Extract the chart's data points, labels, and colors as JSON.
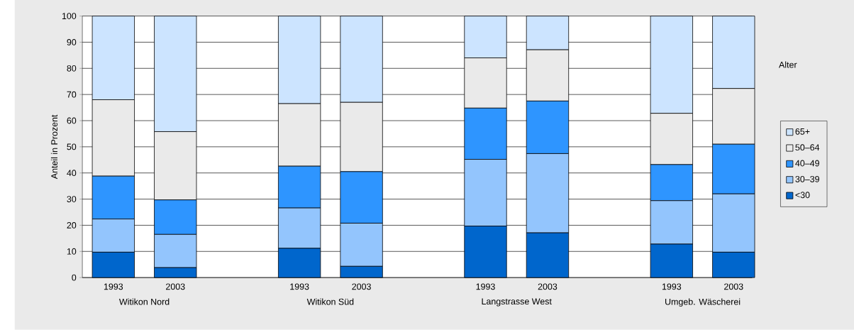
{
  "chart_data": {
    "type": "bar",
    "stacked": true,
    "ylabel": "Anteil in Prozent",
    "legend_title": "Alter",
    "legend": "right",
    "grid": "y",
    "categories": [
      "1993",
      "2003",
      null,
      "1993",
      "2003",
      null,
      "1993",
      "2003",
      null,
      "1993",
      "2003"
    ],
    "annotations": [
      "Witikon Nord",
      "Witikon Süd",
      "Langstrasse West",
      "Umgeb. Wäscherei"
    ],
    "ylim": [
      0,
      100
    ],
    "yticks": [
      0,
      10,
      20,
      30,
      40,
      50,
      60,
      70,
      80,
      90,
      100
    ],
    "series": [
      {
        "name": "<30",
        "color": "#0066cc",
        "values": [
          9.7,
          3.8,
          null,
          11.2,
          4.3,
          null,
          19.7,
          17.1,
          null,
          12.8,
          9.7
        ]
      },
      {
        "name": "30–39",
        "color": "#93c5fd",
        "values": [
          12.7,
          12.7,
          null,
          15.4,
          16.5,
          null,
          25.5,
          30.3,
          null,
          16.6,
          22.3
        ]
      },
      {
        "name": "40–49",
        "color": "#2e95ff",
        "values": [
          16.4,
          13.2,
          null,
          16.0,
          19.7,
          null,
          19.6,
          20.1,
          null,
          13.8,
          19.0
        ]
      },
      {
        "name": "50–64",
        "color": "#eaeaea",
        "values": [
          29.2,
          26.1,
          null,
          23.9,
          26.5,
          null,
          19.2,
          19.6,
          null,
          19.6,
          21.3
        ]
      },
      {
        "name": "65+",
        "color": "#cce4ff",
        "values": [
          32.0,
          44.2,
          null,
          33.5,
          33.0,
          null,
          16.0,
          12.9,
          null,
          37.2,
          27.7
        ]
      }
    ]
  }
}
